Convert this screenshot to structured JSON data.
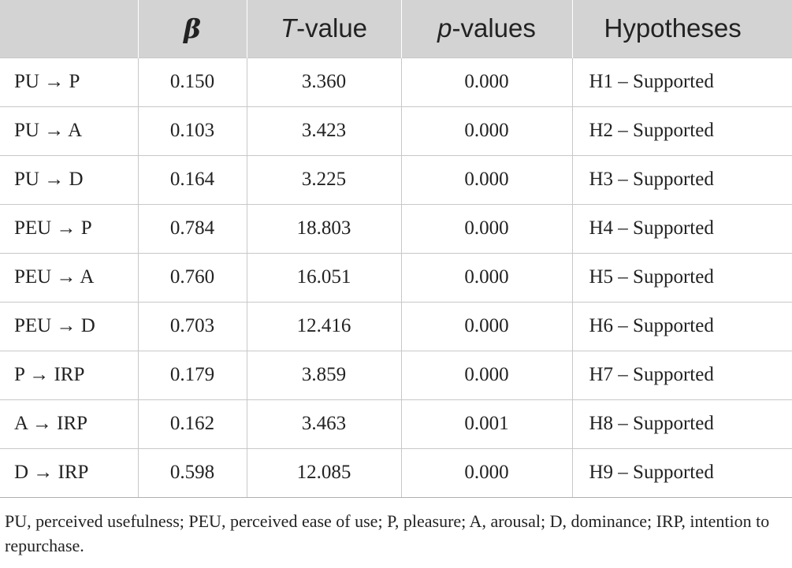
{
  "table": {
    "headers": {
      "col1": "",
      "beta": "β",
      "t_value_italic": "T",
      "t_value_rest": "-value",
      "p_values_italic": "p",
      "p_values_rest": "-values",
      "hypotheses": "Hypotheses"
    },
    "rows": [
      {
        "path": "PU → P",
        "beta": "0.150",
        "t": "3.360",
        "p": "0.000",
        "hyp": "H1 – Supported"
      },
      {
        "path": "PU → A",
        "beta": "0.103",
        "t": "3.423",
        "p": "0.000",
        "hyp": "H2 – Supported"
      },
      {
        "path": "PU → D",
        "beta": "0.164",
        "t": "3.225",
        "p": "0.000",
        "hyp": "H3 – Supported"
      },
      {
        "path": "PEU → P",
        "beta": "0.784",
        "t": "18.803",
        "p": "0.000",
        "hyp": "H4 – Supported"
      },
      {
        "path": "PEU → A",
        "beta": "0.760",
        "t": "16.051",
        "p": "0.000",
        "hyp": "H5 – Supported"
      },
      {
        "path": "PEU → D",
        "beta": "0.703",
        "t": "12.416",
        "p": "0.000",
        "hyp": "H6 – Supported"
      },
      {
        "path": "P → IRP",
        "beta": "0.179",
        "t": "3.859",
        "p": "0.000",
        "hyp": "H7 – Supported"
      },
      {
        "path": "A → IRP",
        "beta": "0.162",
        "t": "3.463",
        "p": "0.001",
        "hyp": "H8 – Supported"
      },
      {
        "path": "D → IRP",
        "beta": "0.598",
        "t": "12.085",
        "p": "0.000",
        "hyp": "H9 – Supported"
      }
    ]
  },
  "footnote": "PU, perceived usefulness; PEU, perceived ease of use; P, pleasure; A, arousal; D, dominance; IRP, intention to repurchase.",
  "colors": {
    "header_bg": "#d3d3d3",
    "grid": "#c8c8c8",
    "text": "#222222"
  }
}
